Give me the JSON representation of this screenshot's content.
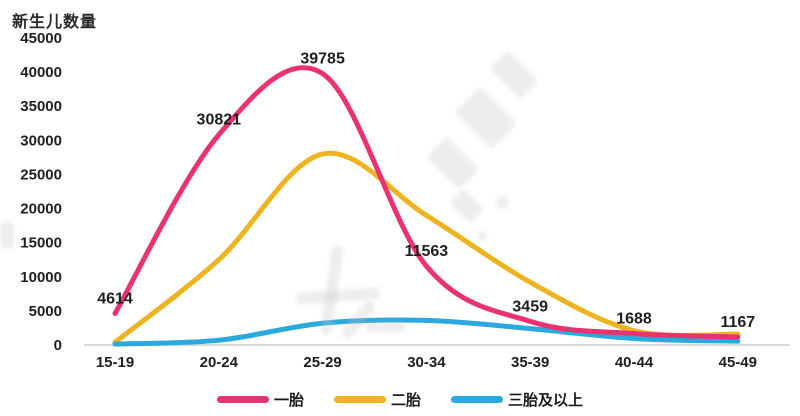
{
  "chart_data": {
    "type": "line",
    "title": "新生儿数量",
    "ylabel": "新生儿数量",
    "xlabel": "",
    "categories": [
      "15-19",
      "20-24",
      "25-29",
      "30-34",
      "35-39",
      "40-44",
      "45-49"
    ],
    "series": [
      {
        "name": "一胎",
        "color": "#e9326f",
        "values": [
          4614,
          30821,
          39785,
          11563,
          3459,
          1688,
          1167
        ],
        "labeled": true
      },
      {
        "name": "二胎",
        "color": "#eeb320",
        "values": [
          400,
          12500,
          28000,
          19000,
          9200,
          2100,
          1600
        ],
        "labeled": false
      },
      {
        "name": "三胎及以上",
        "color": "#29a9dd",
        "values": [
          150,
          700,
          3200,
          3600,
          2400,
          950,
          550
        ],
        "labeled": false
      }
    ],
    "data_labels_series": "一胎",
    "data_labels": [
      "4614",
      "30821",
      "39785",
      "11563",
      "3459",
      "1688",
      "1167"
    ],
    "yticks": [
      0,
      5000,
      10000,
      15000,
      20000,
      25000,
      30000,
      35000,
      40000,
      45000
    ],
    "ylim": [
      0,
      45000
    ],
    "grid": false,
    "legend_position": "bottom",
    "axis_line_color": "#d8d8d8",
    "text_color": "#1f1f1f"
  }
}
